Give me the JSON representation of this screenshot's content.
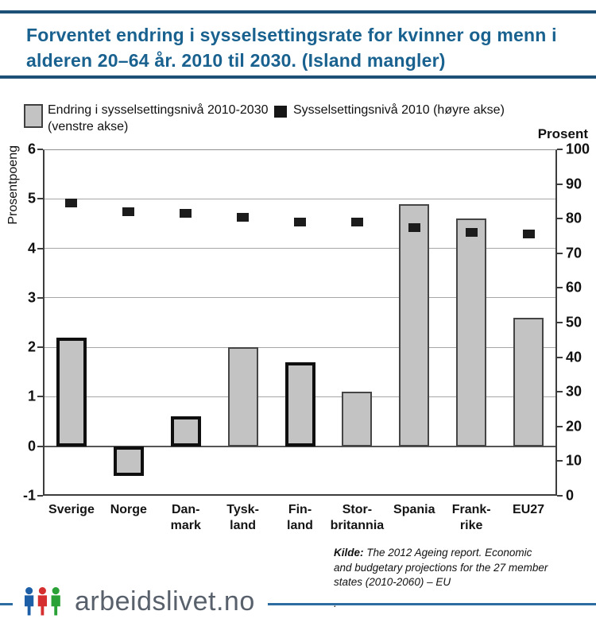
{
  "title": {
    "line1": "Forventet endring i sysselsettingsrate for kvinner og menn i",
    "line2": "alderen 20–64 år. 2010 til 2030. (Island mangler)"
  },
  "legend": {
    "item1": {
      "line1": "Endring i sysselsettingsnivå 2010-2030",
      "line2": "(venstre akse)"
    },
    "item2": {
      "label": "Sysselsettingsnivå 2010 (høyre akse)"
    }
  },
  "chart_data": {
    "type": "bar",
    "title": "Forventet endring i sysselsettingsrate for kvinner og menn i alderen 20–64 år. 2010 til 2030. (Island mangler)",
    "categories": [
      "Sverige",
      "Norge",
      "Danmark",
      "Tyskland",
      "Finland",
      "Storbritannia",
      "Spania",
      "Frankrike",
      "EU27"
    ],
    "category_label_lines": [
      [
        "Sverige"
      ],
      [
        "Norge"
      ],
      [
        "Dan-",
        "mark"
      ],
      [
        "Tysk-",
        "land"
      ],
      [
        "Fin-",
        "land"
      ],
      [
        "Stor-",
        "britannia"
      ],
      [
        "Spania"
      ],
      [
        "Frank-",
        "rike"
      ],
      [
        "EU27"
      ]
    ],
    "series": [
      {
        "name": "Endring i sysselsettingsnivå 2010-2030 (venstre akse)",
        "type": "bar",
        "axis": "left",
        "values": [
          2.2,
          -0.6,
          0.6,
          2.0,
          1.7,
          1.1,
          4.9,
          4.6,
          2.6
        ],
        "thick_outline_categories": [
          "Sverige",
          "Norge",
          "Danmark",
          "Finland"
        ]
      },
      {
        "name": "Sysselsettingsnivå 2010 (høyre akse)",
        "type": "scatter_square",
        "axis": "right",
        "values": [
          84.5,
          82,
          81.5,
          80.5,
          79,
          79,
          77.5,
          76,
          75.5
        ]
      }
    ],
    "left_axis": {
      "title": "Prosentpoeng",
      "min": -1,
      "max": 6,
      "ticks": [
        6,
        5,
        4,
        3,
        2,
        1,
        0,
        -1
      ]
    },
    "right_axis": {
      "title": "Prosent",
      "min": 0,
      "max": 100,
      "ticks": [
        100,
        90,
        80,
        70,
        60,
        50,
        40,
        30,
        20,
        10,
        0
      ]
    },
    "grid": "horizontal",
    "legend_position": "top"
  },
  "source": {
    "label": "Kilde:",
    "line1": "The 2012 Ageing report. Economic",
    "line2": "and budgetary projections for the 27 member",
    "line3": "states (2010-2060) – EU",
    "trailing": "."
  },
  "footer": {
    "logo_text": "arbeidslivet.no"
  },
  "colors": {
    "title_text": "#19618f",
    "title_rule": "#1d5178",
    "bar_fill": "#c3c3c3",
    "bar_thick_border": "#0f0f0f",
    "bar_thin_border": "#454545",
    "marker": "#1c1c1c",
    "gridline": "#a6a6a6",
    "footer_line": "#2d6ba3",
    "logo_blue": "#1d5fa7",
    "logo_red": "#d62f2f",
    "logo_green": "#2aa136",
    "logo_text": "#57606b"
  }
}
